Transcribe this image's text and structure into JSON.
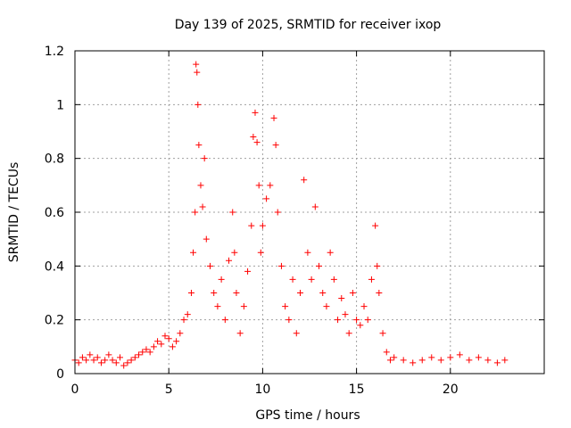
{
  "chart_data": {
    "type": "scatter",
    "title": "Day 139 of 2025, SRMTID for receiver ixop",
    "xlabel": "GPS time / hours",
    "ylabel": "SRMTID / TECUs",
    "xlim": [
      0,
      25
    ],
    "ylim": [
      0,
      1.2
    ],
    "xticks": [
      0,
      5,
      10,
      15,
      20
    ],
    "yticks": [
      0,
      0.2,
      0.4,
      0.6,
      0.8,
      1,
      1.2
    ],
    "xtick_labels": [
      "0",
      "5",
      "10",
      "15",
      "20"
    ],
    "ytick_labels": [
      "0",
      "0.2",
      "0.4",
      "0.6",
      "0.8",
      "1",
      "1.2"
    ],
    "grid": true,
    "marker": "+",
    "series": [
      {
        "name": "SRMTID",
        "color": "#ff0000",
        "points": [
          [
            0.0,
            0.05
          ],
          [
            0.2,
            0.04
          ],
          [
            0.4,
            0.06
          ],
          [
            0.6,
            0.05
          ],
          [
            0.8,
            0.07
          ],
          [
            1.0,
            0.05
          ],
          [
            1.2,
            0.06
          ],
          [
            1.4,
            0.04
          ],
          [
            1.6,
            0.05
          ],
          [
            1.8,
            0.07
          ],
          [
            2.0,
            0.05
          ],
          [
            2.2,
            0.04
          ],
          [
            2.4,
            0.06
          ],
          [
            2.6,
            0.03
          ],
          [
            2.8,
            0.04
          ],
          [
            3.0,
            0.05
          ],
          [
            3.2,
            0.06
          ],
          [
            3.4,
            0.07
          ],
          [
            3.6,
            0.08
          ],
          [
            3.8,
            0.09
          ],
          [
            4.0,
            0.08
          ],
          [
            4.2,
            0.1
          ],
          [
            4.4,
            0.12
          ],
          [
            4.6,
            0.11
          ],
          [
            4.8,
            0.14
          ],
          [
            5.0,
            0.13
          ],
          [
            5.2,
            0.1
          ],
          [
            5.4,
            0.12
          ],
          [
            5.6,
            0.15
          ],
          [
            5.8,
            0.2
          ],
          [
            6.0,
            0.22
          ],
          [
            6.2,
            0.3
          ],
          [
            6.3,
            0.45
          ],
          [
            6.4,
            0.6
          ],
          [
            6.45,
            1.15
          ],
          [
            6.5,
            1.12
          ],
          [
            6.55,
            1.0
          ],
          [
            6.6,
            0.85
          ],
          [
            6.7,
            0.7
          ],
          [
            6.8,
            0.62
          ],
          [
            6.9,
            0.8
          ],
          [
            7.0,
            0.5
          ],
          [
            7.2,
            0.4
          ],
          [
            7.4,
            0.3
          ],
          [
            7.6,
            0.25
          ],
          [
            7.8,
            0.35
          ],
          [
            8.0,
            0.2
          ],
          [
            8.2,
            0.42
          ],
          [
            8.4,
            0.6
          ],
          [
            8.5,
            0.45
          ],
          [
            8.6,
            0.3
          ],
          [
            8.8,
            0.15
          ],
          [
            9.0,
            0.25
          ],
          [
            9.2,
            0.38
          ],
          [
            9.4,
            0.55
          ],
          [
            9.5,
            0.88
          ],
          [
            9.6,
            0.97
          ],
          [
            9.7,
            0.86
          ],
          [
            9.8,
            0.7
          ],
          [
            9.9,
            0.45
          ],
          [
            10.0,
            0.55
          ],
          [
            10.2,
            0.65
          ],
          [
            10.4,
            0.7
          ],
          [
            10.6,
            0.95
          ],
          [
            10.7,
            0.85
          ],
          [
            10.8,
            0.6
          ],
          [
            11.0,
            0.4
          ],
          [
            11.2,
            0.25
          ],
          [
            11.4,
            0.2
          ],
          [
            11.6,
            0.35
          ],
          [
            11.8,
            0.15
          ],
          [
            12.0,
            0.3
          ],
          [
            12.2,
            0.72
          ],
          [
            12.4,
            0.45
          ],
          [
            12.6,
            0.35
          ],
          [
            12.8,
            0.62
          ],
          [
            13.0,
            0.4
          ],
          [
            13.2,
            0.3
          ],
          [
            13.4,
            0.25
          ],
          [
            13.6,
            0.45
          ],
          [
            13.8,
            0.35
          ],
          [
            14.0,
            0.2
          ],
          [
            14.2,
            0.28
          ],
          [
            14.4,
            0.22
          ],
          [
            14.6,
            0.15
          ],
          [
            14.8,
            0.3
          ],
          [
            15.0,
            0.2
          ],
          [
            15.2,
            0.18
          ],
          [
            15.4,
            0.25
          ],
          [
            15.6,
            0.2
          ],
          [
            15.8,
            0.35
          ],
          [
            16.0,
            0.55
          ],
          [
            16.1,
            0.4
          ],
          [
            16.2,
            0.3
          ],
          [
            16.4,
            0.15
          ],
          [
            16.6,
            0.08
          ],
          [
            16.8,
            0.05
          ],
          [
            17.0,
            0.06
          ],
          [
            17.5,
            0.05
          ],
          [
            18.0,
            0.04
          ],
          [
            18.5,
            0.05
          ],
          [
            19.0,
            0.06
          ],
          [
            19.5,
            0.05
          ],
          [
            20.0,
            0.06
          ],
          [
            20.5,
            0.07
          ],
          [
            21.0,
            0.05
          ],
          [
            21.5,
            0.06
          ],
          [
            22.0,
            0.05
          ],
          [
            22.5,
            0.04
          ],
          [
            22.9,
            0.05
          ]
        ]
      }
    ]
  }
}
